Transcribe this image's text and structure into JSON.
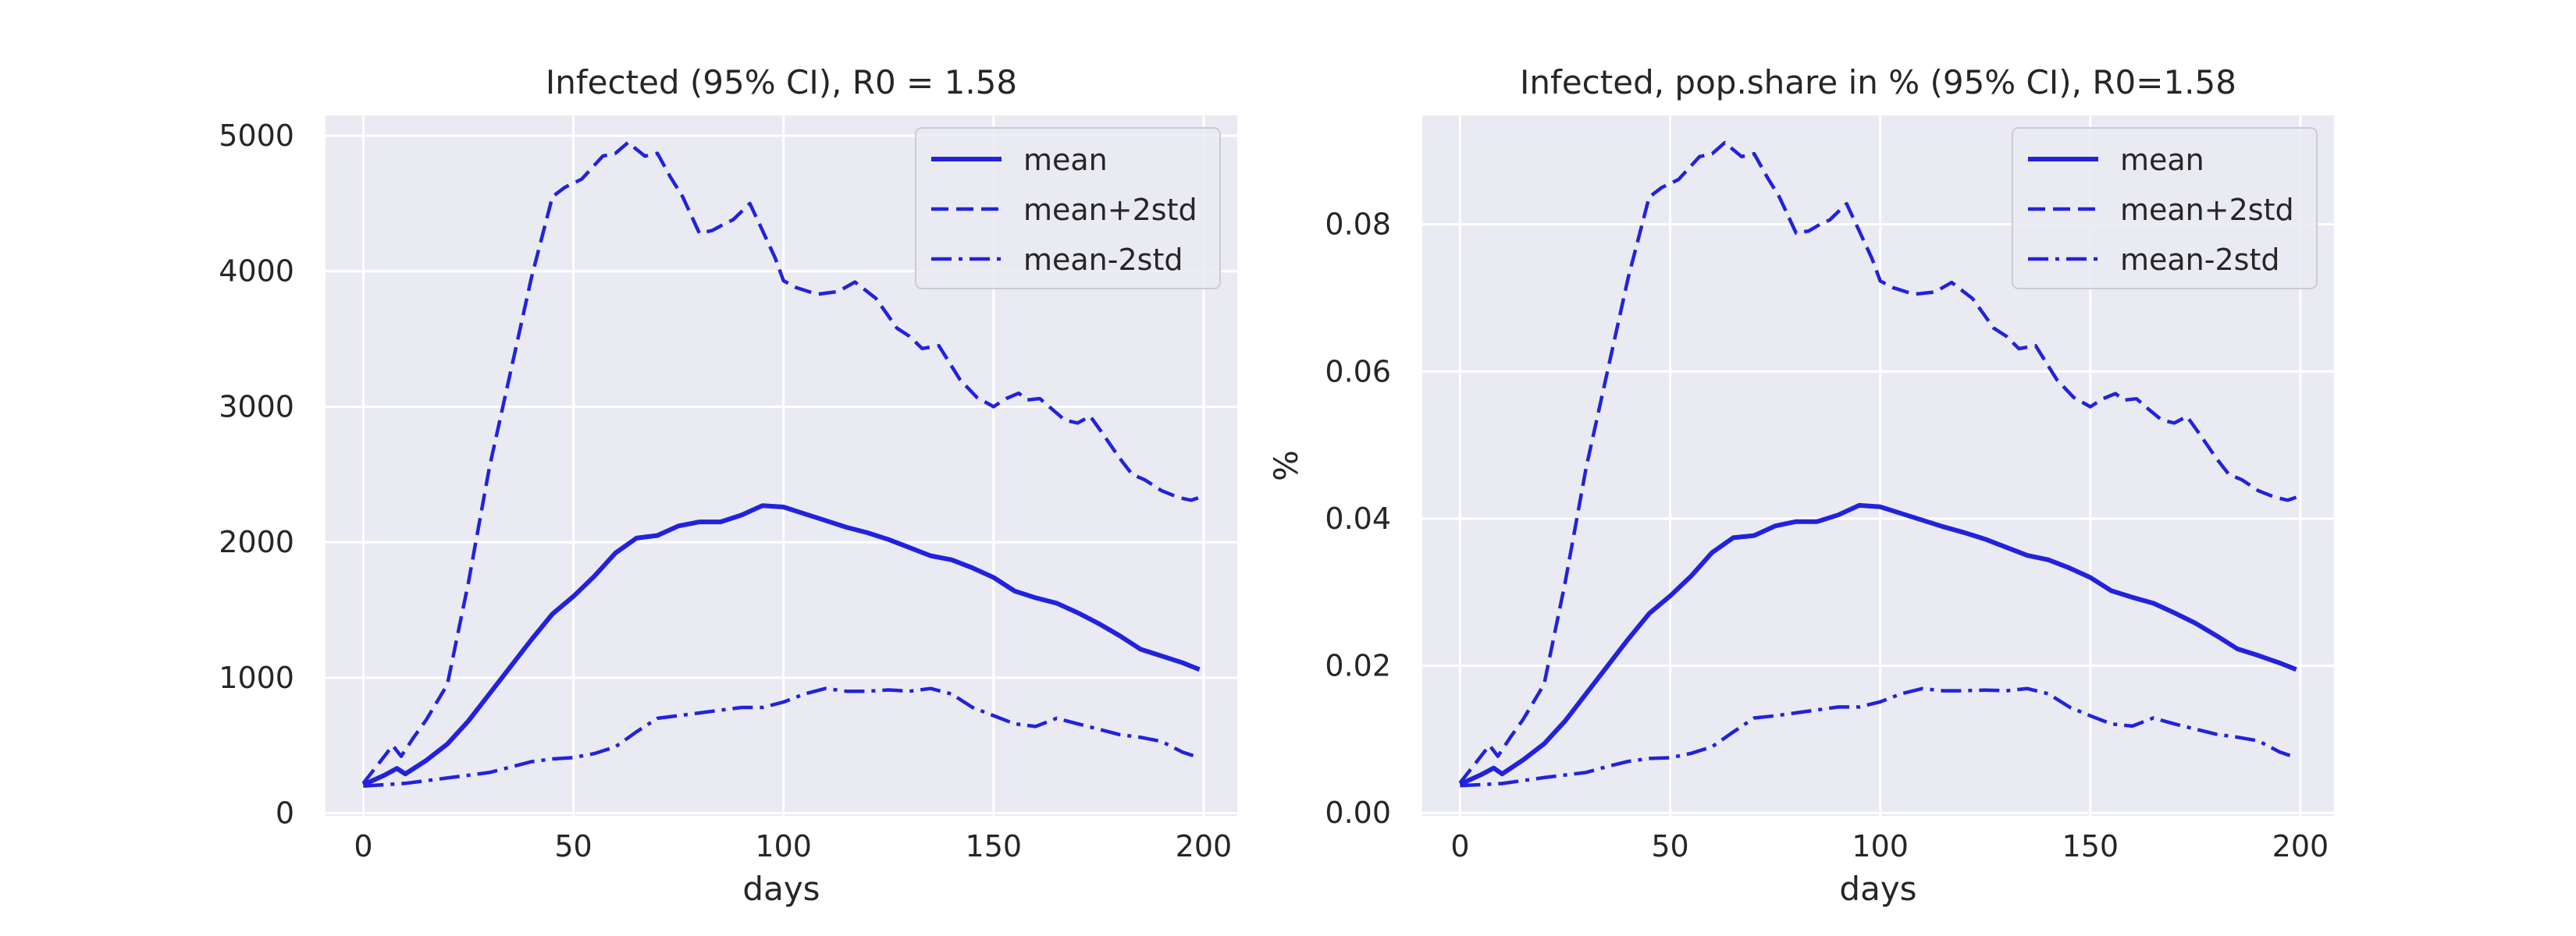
{
  "chart_data": [
    {
      "type": "line",
      "title": "Infected (95% CI), R0 = 1.58",
      "xlabel": "days",
      "ylabel": "",
      "xlim": [
        -9,
        208
      ],
      "ylim": [
        -20,
        5150
      ],
      "xticks": [
        0,
        50,
        100,
        150,
        200
      ],
      "yticks": [
        0,
        1000,
        2000,
        3000,
        4000,
        5000
      ],
      "xtick_labels": [
        "0",
        "50",
        "100",
        "150",
        "200"
      ],
      "ytick_labels": [
        "0",
        "1000",
        "2000",
        "3000",
        "4000",
        "5000"
      ],
      "grid": true,
      "legend_position": "top-right",
      "series": [
        {
          "name": "mean",
          "style": "solid",
          "color": "#2222dd",
          "x": [
            0,
            5,
            8,
            10,
            15,
            20,
            25,
            30,
            35,
            40,
            45,
            50,
            55,
            60,
            65,
            70,
            75,
            80,
            85,
            90,
            95,
            100,
            105,
            110,
            115,
            120,
            125,
            130,
            135,
            140,
            145,
            150,
            155,
            160,
            165,
            170,
            175,
            180,
            185,
            190,
            195,
            199
          ],
          "y": [
            210,
            280,
            330,
            290,
            390,
            510,
            680,
            880,
            1080,
            1280,
            1470,
            1600,
            1750,
            1920,
            2030,
            2050,
            2120,
            2150,
            2150,
            2200,
            2270,
            2260,
            2210,
            2160,
            2110,
            2070,
            2020,
            1960,
            1900,
            1870,
            1810,
            1740,
            1640,
            1590,
            1550,
            1480,
            1400,
            1310,
            1210,
            1160,
            1110,
            1060
          ]
        },
        {
          "name": "mean+2std",
          "style": "dashed",
          "color": "#2222dd",
          "x": [
            0,
            4,
            7,
            9,
            12,
            15,
            20,
            25,
            30,
            35,
            40,
            45,
            48,
            52,
            57,
            60,
            63,
            67,
            70,
            73,
            76,
            80,
            83,
            86,
            88,
            92,
            95,
            98,
            100,
            103,
            108,
            113,
            117,
            122,
            127,
            130,
            133,
            137,
            142,
            146,
            150,
            153,
            156,
            158,
            161,
            164,
            167,
            170,
            173,
            176,
            180,
            183,
            186,
            190,
            194,
            197,
            199
          ],
          "y": [
            220,
            380,
            500,
            420,
            560,
            690,
            950,
            1700,
            2550,
            3250,
            3950,
            4550,
            4620,
            4680,
            4850,
            4870,
            4950,
            4850,
            4870,
            4700,
            4550,
            4280,
            4300,
            4350,
            4380,
            4500,
            4300,
            4100,
            3930,
            3880,
            3830,
            3850,
            3920,
            3800,
            3580,
            3520,
            3430,
            3450,
            3200,
            3070,
            3000,
            3060,
            3100,
            3050,
            3060,
            2980,
            2900,
            2880,
            2930,
            2800,
            2620,
            2500,
            2460,
            2380,
            2330,
            2310,
            2330
          ]
        },
        {
          "name": "mean-2std",
          "style": "dashdot",
          "color": "#2222dd",
          "x": [
            0,
            10,
            20,
            30,
            35,
            40,
            45,
            50,
            55,
            60,
            65,
            70,
            75,
            80,
            85,
            90,
            95,
            100,
            105,
            110,
            115,
            120,
            125,
            130,
            135,
            140,
            145,
            150,
            155,
            160,
            165,
            170,
            175,
            180,
            185,
            190,
            195,
            199
          ],
          "y": [
            200,
            220,
            260,
            300,
            340,
            380,
            400,
            410,
            440,
            490,
            600,
            700,
            720,
            740,
            760,
            780,
            780,
            820,
            880,
            920,
            900,
            900,
            910,
            900,
            920,
            880,
            780,
            720,
            660,
            640,
            700,
            660,
            620,
            580,
            560,
            530,
            450,
            410
          ]
        }
      ]
    },
    {
      "type": "line",
      "title": "Infected, pop.share in % (95% CI), R0=1.58",
      "xlabel": "days",
      "ylabel": "%",
      "xlim": [
        -9,
        208
      ],
      "ylim": [
        -0.0004,
        0.0948
      ],
      "xticks": [
        0,
        50,
        100,
        150,
        200
      ],
      "yticks": [
        0.0,
        0.02,
        0.04,
        0.06,
        0.08
      ],
      "xtick_labels": [
        "0",
        "50",
        "100",
        "150",
        "200"
      ],
      "ytick_labels": [
        "0.00",
        "0.02",
        "0.04",
        "0.06",
        "0.08"
      ],
      "grid": true,
      "legend_position": "top-right",
      "series": [
        {
          "name": "mean",
          "style": "solid",
          "color": "#2222dd",
          "x": [
            0,
            5,
            8,
            10,
            15,
            20,
            25,
            30,
            35,
            40,
            45,
            50,
            55,
            60,
            65,
            70,
            75,
            80,
            85,
            90,
            95,
            100,
            105,
            110,
            115,
            120,
            125,
            130,
            135,
            140,
            145,
            150,
            155,
            160,
            165,
            170,
            175,
            180,
            185,
            190,
            195,
            199
          ],
          "y": [
            0.0039,
            0.0052,
            0.0061,
            0.0053,
            0.0072,
            0.0094,
            0.0125,
            0.0162,
            0.0199,
            0.0236,
            0.0271,
            0.0295,
            0.0322,
            0.0354,
            0.0374,
            0.0377,
            0.039,
            0.0396,
            0.0396,
            0.0405,
            0.0418,
            0.0416,
            0.0407,
            0.0398,
            0.0389,
            0.0381,
            0.0372,
            0.0361,
            0.035,
            0.0344,
            0.0333,
            0.032,
            0.0302,
            0.0293,
            0.0285,
            0.0272,
            0.0258,
            0.0241,
            0.0223,
            0.0214,
            0.0204,
            0.0195
          ]
        },
        {
          "name": "mean+2std",
          "style": "dashed",
          "color": "#2222dd",
          "x": [
            0,
            4,
            7,
            9,
            12,
            15,
            20,
            25,
            30,
            35,
            40,
            45,
            48,
            52,
            57,
            60,
            63,
            67,
            70,
            73,
            76,
            80,
            83,
            86,
            88,
            92,
            95,
            98,
            100,
            103,
            108,
            113,
            117,
            122,
            127,
            130,
            133,
            137,
            142,
            146,
            150,
            153,
            156,
            158,
            161,
            164,
            167,
            170,
            173,
            176,
            180,
            183,
            186,
            190,
            194,
            197,
            199
          ],
          "y": [
            0.0041,
            0.007,
            0.0092,
            0.0077,
            0.0103,
            0.0127,
            0.0175,
            0.0313,
            0.0469,
            0.0598,
            0.0727,
            0.0837,
            0.085,
            0.0861,
            0.0892,
            0.0896,
            0.0911,
            0.0892,
            0.0896,
            0.0865,
            0.0837,
            0.0788,
            0.0791,
            0.0801,
            0.0806,
            0.0828,
            0.0791,
            0.0754,
            0.0723,
            0.0714,
            0.0705,
            0.0708,
            0.0721,
            0.0699,
            0.0659,
            0.0648,
            0.0631,
            0.0635,
            0.0589,
            0.0565,
            0.0552,
            0.0563,
            0.057,
            0.0561,
            0.0563,
            0.0548,
            0.0534,
            0.053,
            0.0539,
            0.0515,
            0.0482,
            0.046,
            0.0453,
            0.0438,
            0.0429,
            0.0425,
            0.0429
          ]
        },
        {
          "name": "mean-2std",
          "style": "dashdot",
          "color": "#2222dd",
          "x": [
            0,
            10,
            20,
            30,
            35,
            40,
            45,
            50,
            55,
            60,
            65,
            70,
            75,
            80,
            85,
            90,
            95,
            100,
            105,
            110,
            115,
            120,
            125,
            130,
            135,
            140,
            145,
            150,
            155,
            160,
            165,
            170,
            175,
            180,
            185,
            190,
            195,
            199
          ],
          "y": [
            0.0037,
            0.004,
            0.0048,
            0.0055,
            0.0063,
            0.007,
            0.0074,
            0.0075,
            0.0081,
            0.009,
            0.011,
            0.0129,
            0.0132,
            0.0136,
            0.014,
            0.0144,
            0.0144,
            0.0151,
            0.0162,
            0.0169,
            0.0166,
            0.0166,
            0.0167,
            0.0166,
            0.0169,
            0.0162,
            0.0144,
            0.0132,
            0.0121,
            0.0118,
            0.0129,
            0.0121,
            0.0114,
            0.0107,
            0.0103,
            0.0098,
            0.0083,
            0.0075
          ]
        }
      ]
    }
  ]
}
